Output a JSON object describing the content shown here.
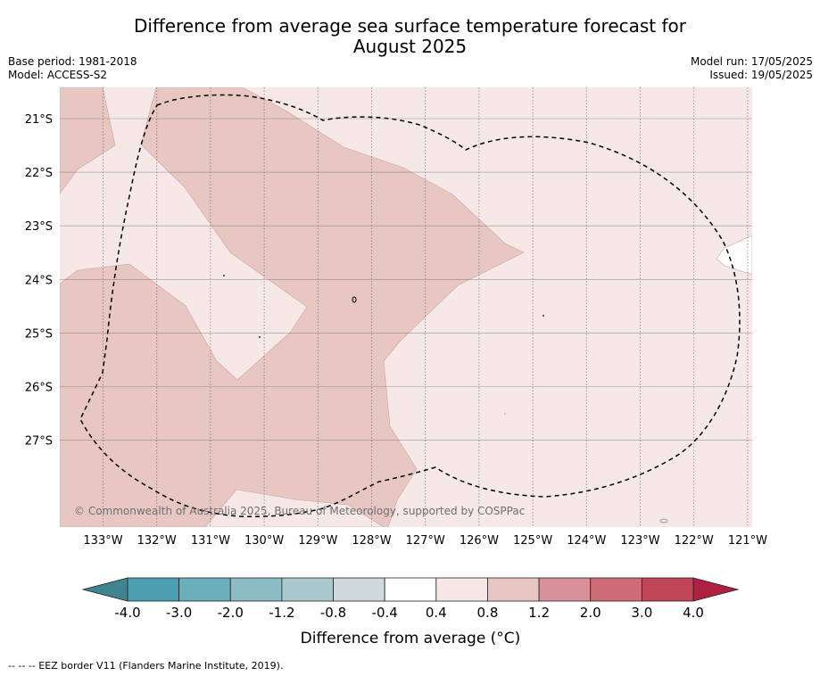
{
  "title_line1": "Difference from average sea surface temperature forecast for",
  "title_line2": "August 2025",
  "base_period": "Base period: 1981-2018",
  "model": "Model: ACCESS-S2",
  "model_run": "Model run: 17/05/2025",
  "issued": "Issued: 19/05/2025",
  "copyright": "© Commonwealth of Australia 2025, Bureau of Meteorology, supported by COSPPac",
  "footer": "--  --  -- EEZ border V11 (Flanders Marine Institute, 2019).",
  "map": {
    "lat_ticks": [
      "21°S",
      "22°S",
      "23°S",
      "24°S",
      "25°S",
      "26°S",
      "27°S"
    ],
    "lon_ticks": [
      "133°W",
      "132°W",
      "131°W",
      "130°W",
      "129°W",
      "128°W",
      "127°W",
      "126°W",
      "125°W",
      "124°W",
      "123°W",
      "122°W",
      "121°W"
    ],
    "colors": {
      "background_class": "#f5e8e7",
      "anomaly_class": "#e8c7c3",
      "gridline": "#555555",
      "eez_border": "#000000"
    }
  },
  "colorbar": {
    "title": "Difference from average (°C)",
    "tick_labels": [
      "-4.0",
      "-3.0",
      "-2.0",
      "-1.2",
      "-0.8",
      "-0.4",
      "0.4",
      "0.8",
      "1.2",
      "2.0",
      "3.0",
      "4.0"
    ],
    "colors": [
      "#4c9fb0",
      "#6aaebb",
      "#8cbcc6",
      "#aac9cd",
      "#cfd8da",
      "#ffffff",
      "#f5e8e7",
      "#e8c7c3",
      "#d8919a",
      "#cf6b76",
      "#c04556"
    ],
    "extend_low_color": "#3f8590",
    "extend_high_color": "#b02040"
  }
}
